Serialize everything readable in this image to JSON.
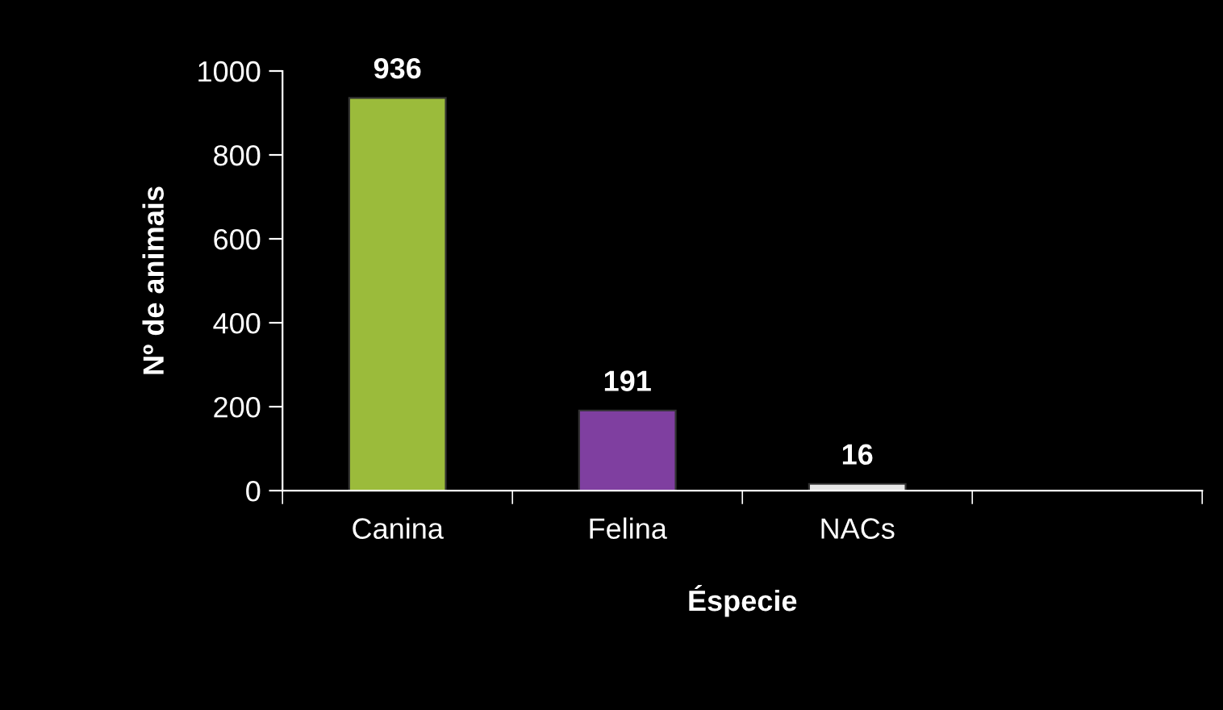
{
  "chart_data": {
    "type": "bar",
    "xlabel": "Éspecie",
    "ylabel": "Nº de animais",
    "categories": [
      "Canina",
      "Felina",
      "NACs",
      null
    ],
    "values": [
      936,
      191,
      16,
      null
    ],
    "colors": [
      "#9bbb3b",
      "#7f3fa0",
      "#e6e6e6",
      "#e6e6e6"
    ],
    "ylim": [
      0,
      1000
    ],
    "yticks": [
      0,
      200,
      400,
      600,
      800,
      1000
    ],
    "data_labels": true,
    "grid": false,
    "legend": false
  }
}
